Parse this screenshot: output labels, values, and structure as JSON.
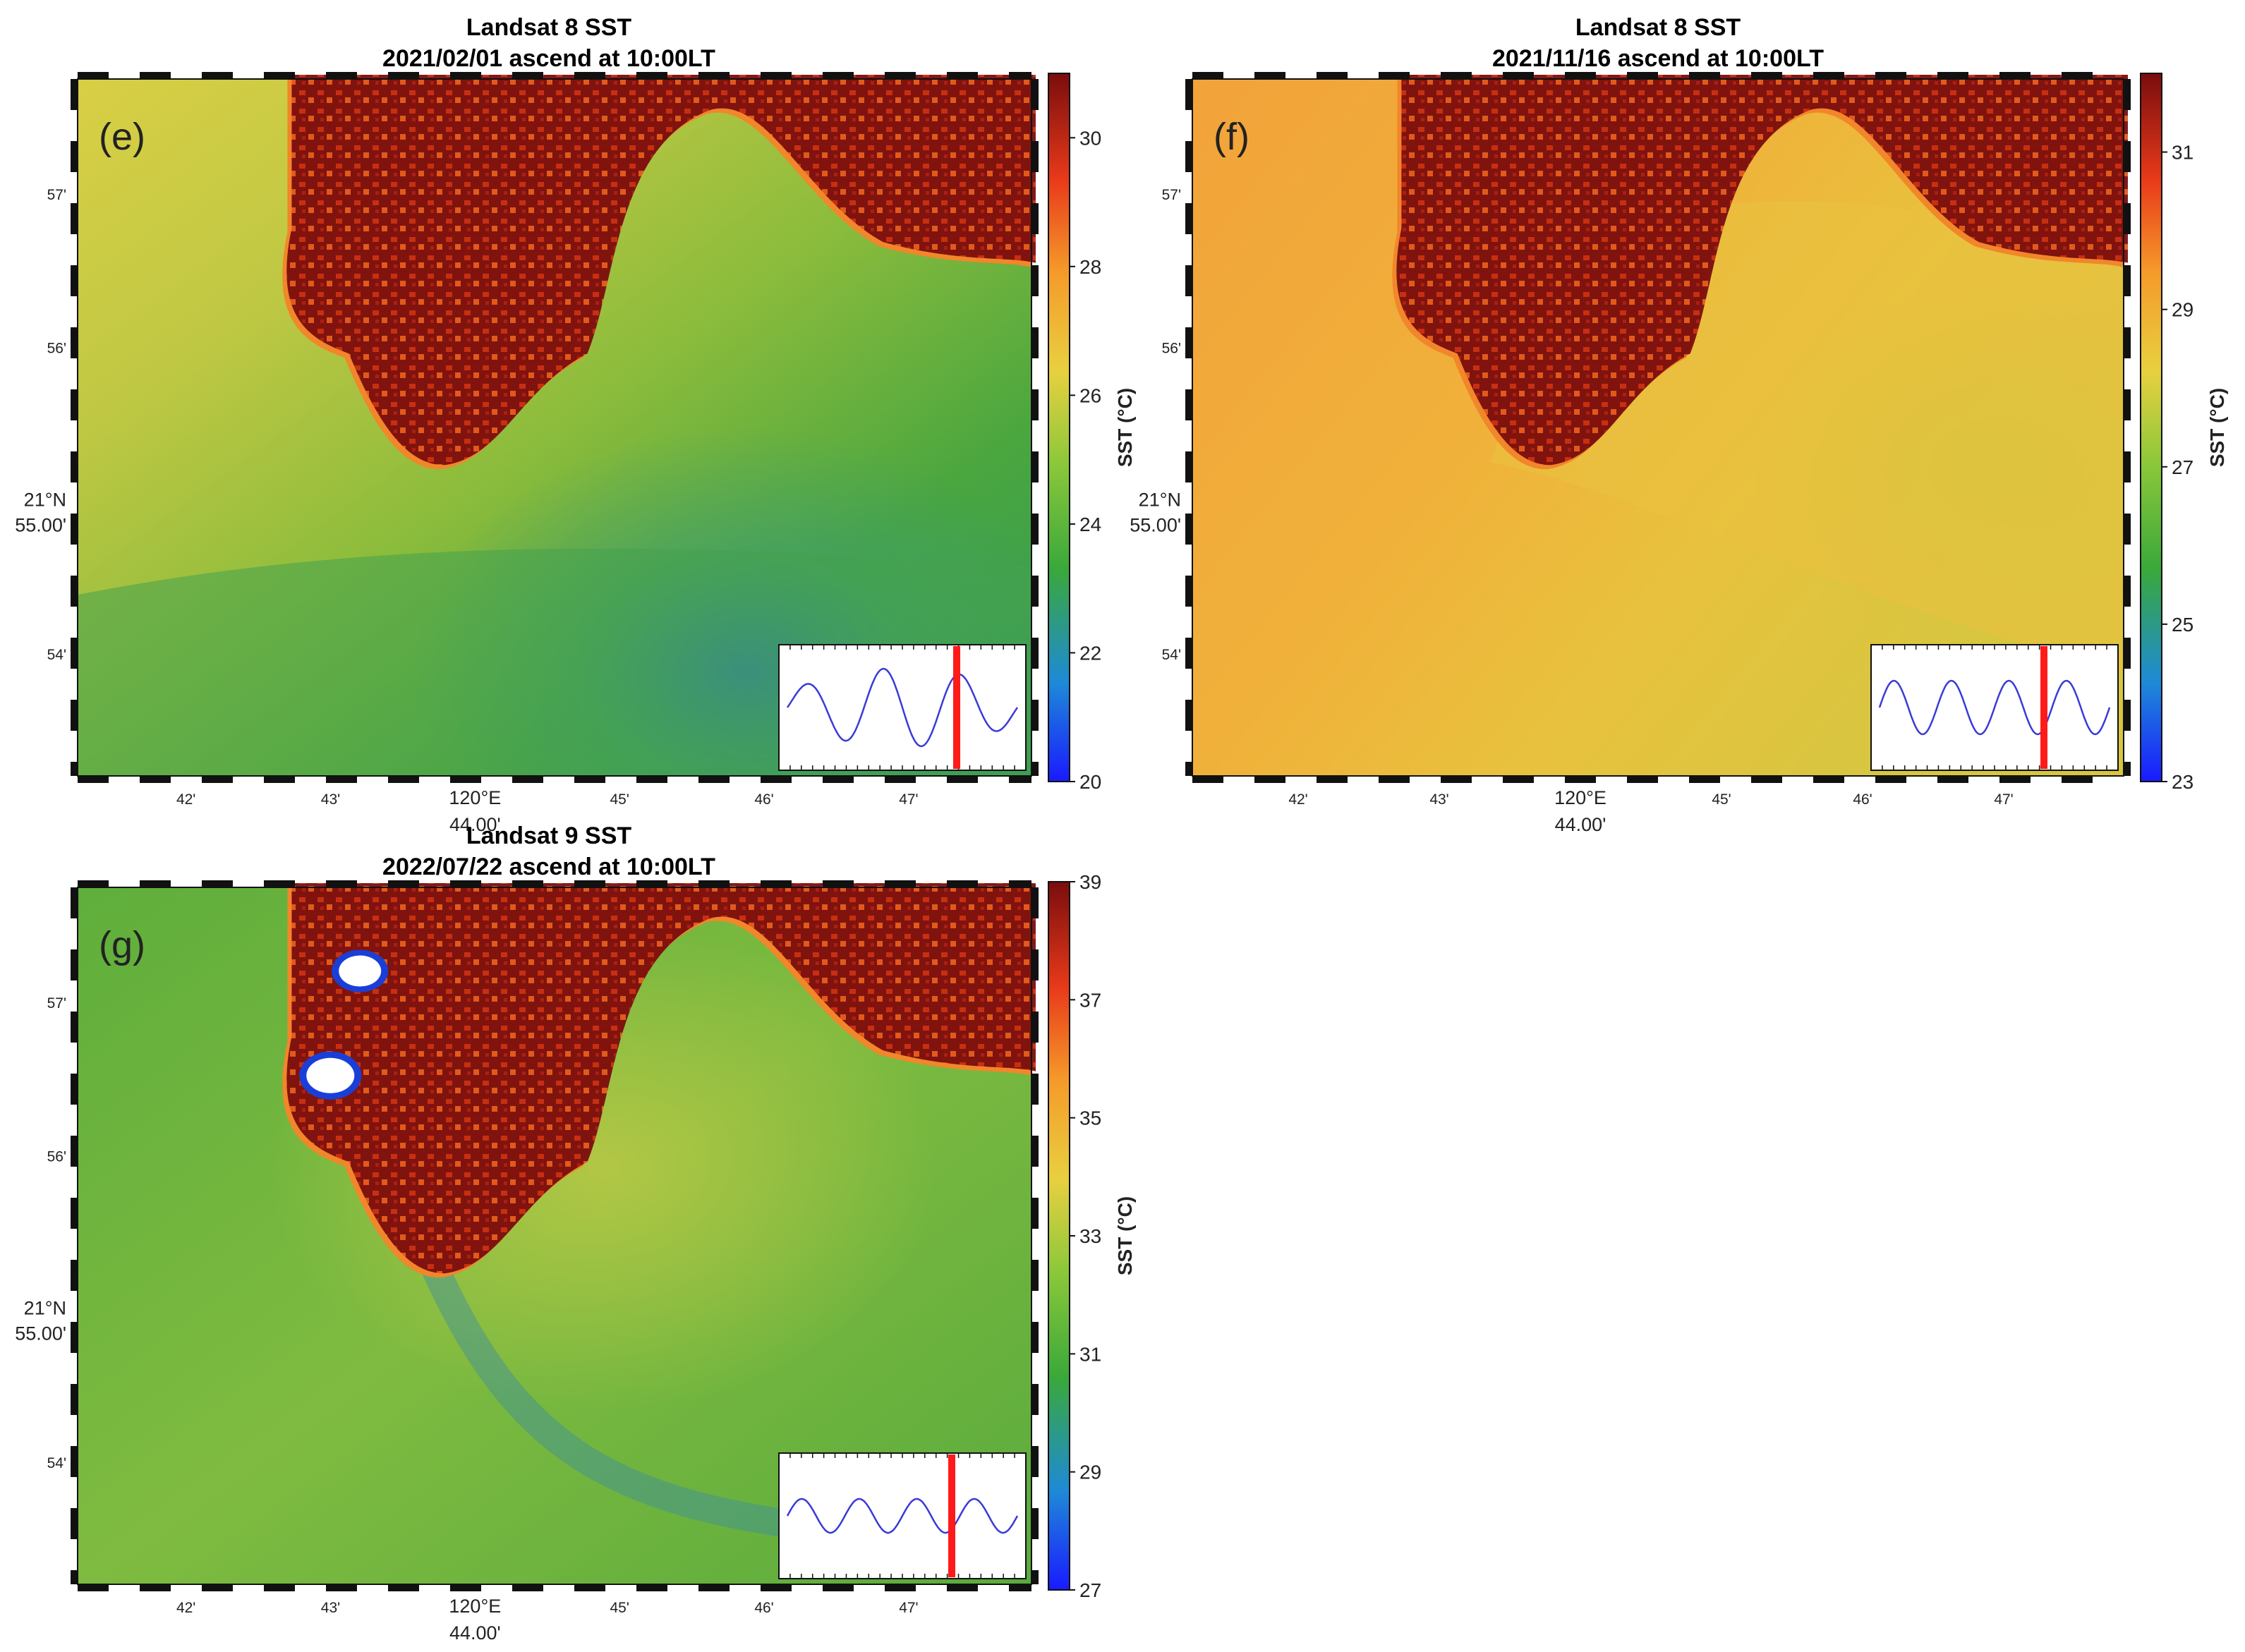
{
  "figure": {
    "colors": {
      "land_hot": "#7a0d0d",
      "inset_line": "#3a3ad8",
      "inset_marker": "#ff1a1a",
      "cloud_mask": "#ffffff"
    },
    "panels": [
      {
        "id": "e",
        "label": "(e)",
        "title_line1": "Landsat 8 SST",
        "title_line2": "2021/02/01 ascend at 10:00LT",
        "colorbar": {
          "label": "SST (°C)",
          "ticks": [
            "20",
            "22",
            "24",
            "26",
            "28",
            "30"
          ],
          "min": 20,
          "max": 31
        },
        "lon_ticks": [
          "42'",
          "43'",
          "120°E",
          "45'",
          "46'",
          "47'"
        ],
        "lon_center_value": "44.00'",
        "lat_ticks": [
          "57'",
          "56'",
          "21°N",
          "54'"
        ],
        "lat_center_value": "55.00'",
        "inset": {
          "tide_phase_marker_fraction": 0.72
        }
      },
      {
        "id": "f",
        "label": "(f)",
        "title_line1": "Landsat 8 SST",
        "title_line2": "2021/11/16 ascend at 10:00LT",
        "colorbar": {
          "label": "SST (°C)",
          "ticks": [
            "23",
            "25",
            "27",
            "29",
            "31"
          ],
          "min": 23,
          "max": 32
        },
        "lon_ticks": [
          "42'",
          "43'",
          "120°E",
          "45'",
          "46'",
          "47'"
        ],
        "lon_center_value": "44.00'",
        "lat_ticks": [
          "57'",
          "56'",
          "21°N",
          "54'"
        ],
        "lat_center_value": "55.00'",
        "inset": {
          "tide_phase_marker_fraction": 0.7
        }
      },
      {
        "id": "g",
        "label": "(g)",
        "title_line1": "Landsat 9 SST",
        "title_line2": "2022/07/22 ascend at 10:00LT",
        "colorbar": {
          "label": "SST (°C)",
          "ticks": [
            "27",
            "29",
            "31",
            "33",
            "35",
            "37",
            "39"
          ],
          "min": 27,
          "max": 39
        },
        "lon_ticks": [
          "42'",
          "43'",
          "120°E",
          "45'",
          "46'",
          "47'"
        ],
        "lon_center_value": "44.00'",
        "lat_ticks": [
          "57'",
          "56'",
          "21°N",
          "54'"
        ],
        "lat_center_value": "55.00'",
        "inset": {
          "tide_phase_marker_fraction": 0.7
        }
      }
    ]
  }
}
